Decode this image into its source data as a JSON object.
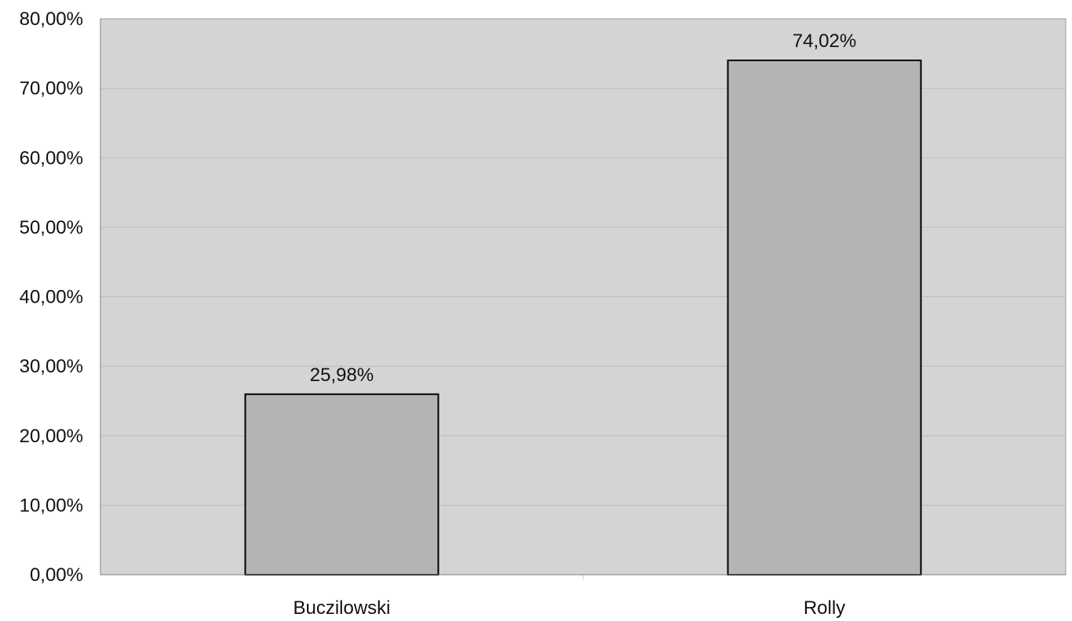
{
  "chart_data": {
    "type": "bar",
    "categories": [
      "Buczilowski",
      "Rolly"
    ],
    "series": [
      {
        "values": [
          25.98,
          74.02
        ],
        "value_labels": [
          "25,98%",
          "74,02%"
        ]
      }
    ],
    "ylim": [
      0,
      80
    ],
    "y_ticks": [
      0,
      10,
      20,
      30,
      40,
      50,
      60,
      70,
      80
    ],
    "y_tick_labels": [
      "0,00%",
      "10,00%",
      "20,00%",
      "30,00%",
      "40,00%",
      "50,00%",
      "60,00%",
      "70,00%",
      "80,00%"
    ],
    "grid": true,
    "legend": "none",
    "title": "",
    "xlabel": "",
    "ylabel": "",
    "colors": {
      "plot_background": "#d4d4d4",
      "bar_fill": "#b4b4b4",
      "bar_stroke": "#000000",
      "gridline": "#bcbcbc"
    }
  }
}
